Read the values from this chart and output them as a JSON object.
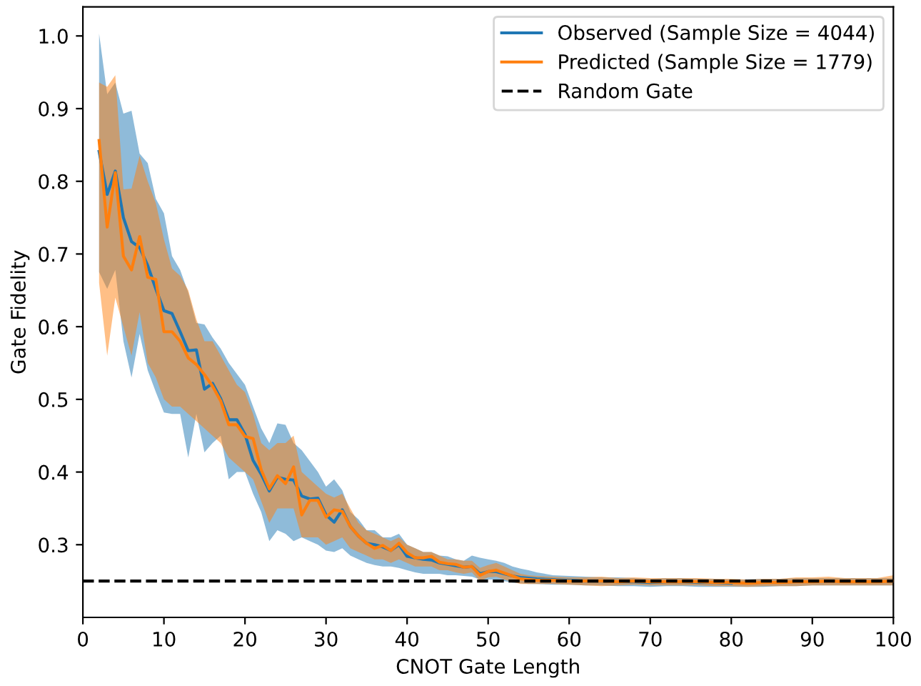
{
  "chart_data": {
    "type": "line",
    "xlabel": "CNOT Gate Length",
    "ylabel": "Gate Fidelity",
    "xlim": [
      0,
      100
    ],
    "ylim": [
      0.2,
      1.04
    ],
    "xticks": [
      0,
      10,
      20,
      30,
      40,
      50,
      60,
      70,
      80,
      90,
      100
    ],
    "yticks": [
      0.3,
      0.4,
      0.5,
      0.6,
      0.7,
      0.8,
      0.9,
      {
        "value": 1.0,
        "label": "1.0"
      }
    ],
    "grid": false,
    "legend": "top right",
    "line_style": "solid",
    "x": [
      2,
      3,
      4,
      5,
      6,
      7,
      8,
      9,
      10,
      11,
      12,
      13,
      14,
      15,
      16,
      17,
      18,
      19,
      20,
      21,
      22,
      23,
      24,
      25,
      26,
      27,
      28,
      29,
      30,
      31,
      32,
      33,
      34,
      35,
      36,
      37,
      38,
      39,
      40,
      41,
      42,
      43,
      44,
      45,
      46,
      47,
      48,
      49,
      50,
      51,
      52,
      53,
      54,
      55,
      56,
      58,
      60,
      62,
      64,
      66,
      68,
      70,
      72,
      74,
      76,
      78,
      80,
      82,
      84,
      86,
      88,
      90,
      92,
      94,
      96,
      98,
      100
    ],
    "series": [
      {
        "name": "Observed (Sample Size = 4044)",
        "color": "#1f77b4",
        "values": [
          0.841,
          0.782,
          0.814,
          0.75,
          0.717,
          0.709,
          0.684,
          0.652,
          0.622,
          0.618,
          0.593,
          0.567,
          0.568,
          0.514,
          0.522,
          0.501,
          0.472,
          0.472,
          0.452,
          0.416,
          0.397,
          0.374,
          0.393,
          0.39,
          0.389,
          0.367,
          0.363,
          0.364,
          0.341,
          0.331,
          0.348,
          0.325,
          0.312,
          0.302,
          0.3,
          0.297,
          0.292,
          0.3,
          0.284,
          0.282,
          0.28,
          0.279,
          0.275,
          0.273,
          0.271,
          0.269,
          0.27,
          0.26,
          0.263,
          0.263,
          0.26,
          0.257,
          0.255,
          0.254,
          0.253,
          0.252,
          0.251,
          0.25,
          0.25,
          0.249,
          0.249,
          0.248,
          0.249,
          0.249,
          0.248,
          0.248,
          0.247,
          null,
          null,
          null,
          null,
          null,
          null,
          null,
          null,
          null,
          null
        ],
        "upper": [
          1.003,
          0.92,
          0.936,
          0.893,
          0.897,
          0.838,
          0.825,
          0.776,
          0.756,
          0.697,
          0.678,
          0.647,
          0.605,
          0.603,
          0.585,
          0.57,
          0.55,
          0.535,
          0.52,
          0.49,
          0.46,
          0.44,
          0.467,
          0.465,
          0.44,
          0.43,
          0.415,
          0.4,
          0.38,
          0.39,
          0.375,
          0.345,
          0.335,
          0.32,
          0.32,
          0.31,
          0.31,
          0.315,
          0.3,
          0.295,
          0.29,
          0.29,
          0.285,
          0.284,
          0.28,
          0.278,
          0.285,
          0.282,
          0.28,
          0.278,
          0.275,
          0.27,
          0.267,
          0.265,
          0.262,
          0.258,
          0.257,
          0.256,
          0.255,
          0.255,
          0.254,
          0.253,
          0.254,
          0.254,
          0.253,
          0.253,
          0.252,
          0.252,
          0.253,
          0.253,
          0.254,
          0.254,
          0.254,
          0.254,
          0.254,
          0.254,
          0.254
        ],
        "lower": [
          0.675,
          0.652,
          0.678,
          0.58,
          0.53,
          0.59,
          0.54,
          0.51,
          0.482,
          0.48,
          0.48,
          0.42,
          0.48,
          0.427,
          0.44,
          0.45,
          0.39,
          0.4,
          0.4,
          0.37,
          0.345,
          0.305,
          0.32,
          0.315,
          0.305,
          0.31,
          0.305,
          0.3,
          0.292,
          0.29,
          0.295,
          0.285,
          0.28,
          0.275,
          0.272,
          0.27,
          0.27,
          0.268,
          0.265,
          0.262,
          0.26,
          0.26,
          0.26,
          0.258,
          0.258,
          0.257,
          0.256,
          0.252,
          0.252,
          0.252,
          0.25,
          0.248,
          0.247,
          0.246,
          0.246,
          0.245,
          0.245,
          0.244,
          0.244,
          0.243,
          0.243,
          0.242,
          0.243,
          0.243,
          0.242,
          0.242,
          0.242,
          0.242,
          0.242,
          0.243,
          0.243,
          0.244,
          0.244,
          0.244,
          0.244,
          0.244,
          0.244
        ]
      },
      {
        "name": "Predicted (Sample Size = 1779)",
        "color": "#ff7f0e",
        "values": [
          0.856,
          0.737,
          0.812,
          0.697,
          0.678,
          0.724,
          0.668,
          0.665,
          0.593,
          0.593,
          0.58,
          0.557,
          0.548,
          0.534,
          0.518,
          0.498,
          0.465,
          0.465,
          0.449,
          0.446,
          0.403,
          0.377,
          0.395,
          0.384,
          0.407,
          0.341,
          0.361,
          0.361,
          0.338,
          0.348,
          0.346,
          0.325,
          0.312,
          0.302,
          0.295,
          0.299,
          0.292,
          0.302,
          0.289,
          0.282,
          0.282,
          0.284,
          0.276,
          0.274,
          0.273,
          0.269,
          0.27,
          0.258,
          0.263,
          0.265,
          0.261,
          0.257,
          0.253,
          0.252,
          0.251,
          0.251,
          0.25,
          0.25,
          0.25,
          0.249,
          0.25,
          0.249,
          0.249,
          0.249,
          0.249,
          0.248,
          0.248,
          0.247,
          0.248,
          0.248,
          0.249,
          0.249,
          0.25,
          0.249,
          0.249,
          0.249,
          0.25
        ],
        "upper": [
          0.936,
          0.93,
          0.946,
          0.789,
          0.79,
          0.835,
          0.8,
          0.77,
          0.72,
          0.68,
          0.67,
          0.65,
          0.61,
          0.58,
          0.58,
          0.56,
          0.54,
          0.52,
          0.51,
          0.48,
          0.44,
          0.43,
          0.44,
          0.44,
          0.45,
          0.4,
          0.39,
          0.38,
          0.37,
          0.365,
          0.37,
          0.35,
          0.33,
          0.32,
          0.315,
          0.31,
          0.305,
          0.31,
          0.3,
          0.295,
          0.29,
          0.29,
          0.285,
          0.28,
          0.28,
          0.278,
          0.278,
          0.268,
          0.272,
          0.275,
          0.27,
          0.265,
          0.26,
          0.258,
          0.257,
          0.256,
          0.255,
          0.255,
          0.256,
          0.254,
          0.255,
          0.254,
          0.254,
          0.254,
          0.254,
          0.253,
          0.253,
          0.252,
          0.253,
          0.253,
          0.255,
          0.255,
          0.256,
          0.254,
          0.254,
          0.254,
          0.258
        ],
        "lower": [
          0.66,
          0.56,
          0.64,
          0.6,
          0.56,
          0.62,
          0.55,
          0.53,
          0.5,
          0.49,
          0.49,
          0.48,
          0.47,
          0.46,
          0.45,
          0.44,
          0.42,
          0.41,
          0.4,
          0.39,
          0.36,
          0.33,
          0.35,
          0.35,
          0.35,
          0.31,
          0.31,
          0.31,
          0.3,
          0.305,
          0.31,
          0.295,
          0.29,
          0.285,
          0.28,
          0.28,
          0.275,
          0.28,
          0.275,
          0.27,
          0.27,
          0.27,
          0.265,
          0.265,
          0.262,
          0.26,
          0.262,
          0.25,
          0.255,
          0.256,
          0.252,
          0.249,
          0.246,
          0.246,
          0.246,
          0.246,
          0.245,
          0.244,
          0.243,
          0.244,
          0.245,
          0.244,
          0.244,
          0.244,
          0.244,
          0.243,
          0.243,
          0.242,
          0.243,
          0.243,
          0.243,
          0.244,
          0.244,
          0.244,
          0.244,
          0.244,
          0.244
        ]
      }
    ],
    "ref_lines": [
      {
        "axis": "y",
        "value": 0.25,
        "label": "Random Gate",
        "color": "#000000",
        "line_style": "dashed"
      }
    ]
  }
}
